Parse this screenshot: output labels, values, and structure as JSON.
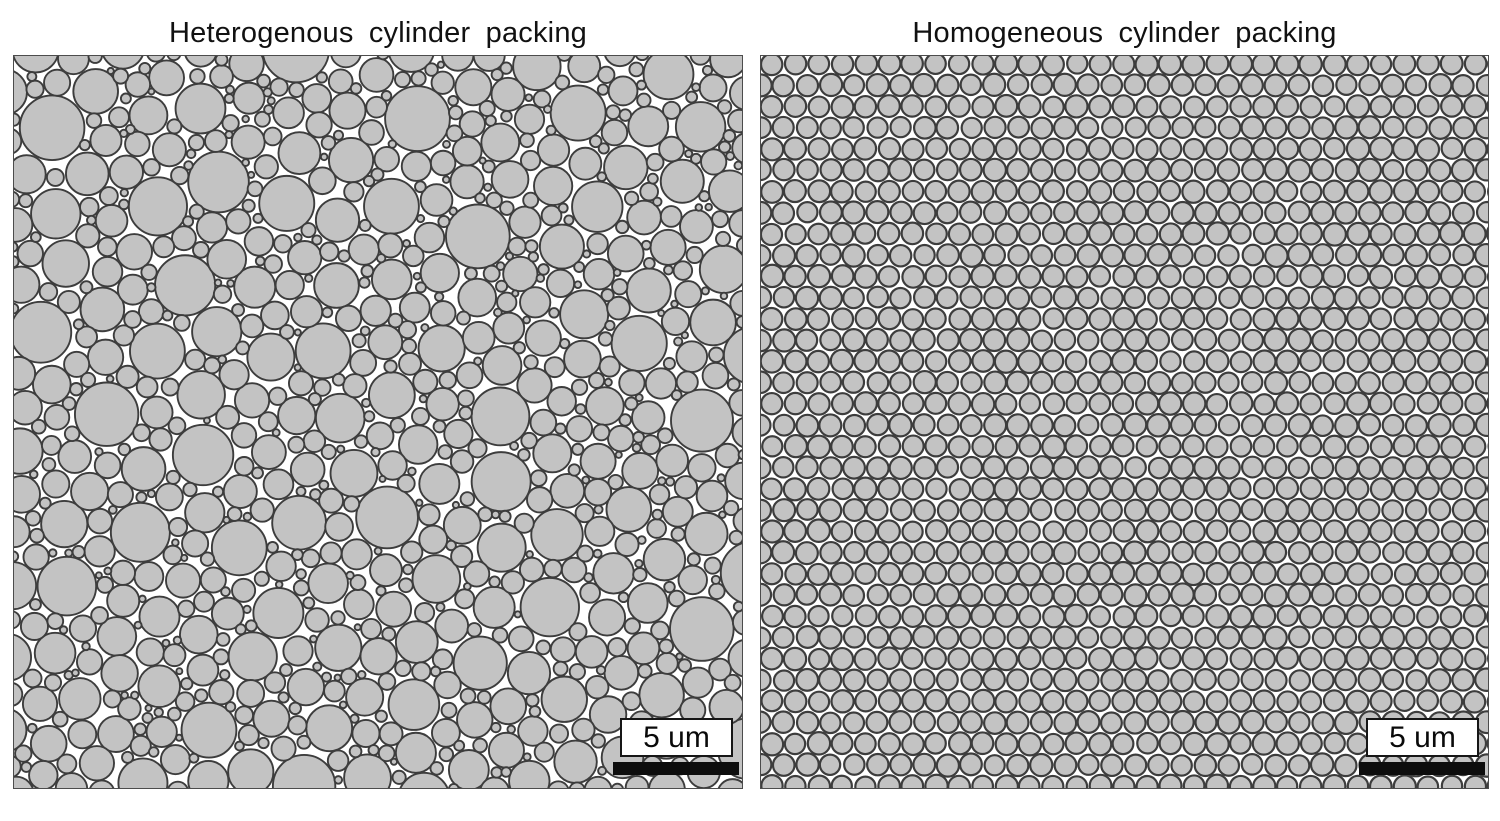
{
  "figure": {
    "background": "#ffffff",
    "title_color": "#111111",
    "panel_border_color": "#4c4c4c",
    "scalebar_bar_color": "#0d0d0d",
    "scalebar_box_border": "#161616",
    "scalebar_box_fill": "#ffffff"
  },
  "panels": [
    {
      "id": "heterogeneous",
      "title": "Heterogenous cylinder packing",
      "scalebar": {
        "label": "5 um"
      },
      "packing": {
        "type": "heterogeneous",
        "seed": 1337,
        "radius_classes": [
          [
            26,
            34,
            32
          ],
          [
            19,
            26,
            85
          ],
          [
            13,
            19,
            170
          ],
          [
            8.5,
            13,
            260
          ],
          [
            5,
            8.5,
            300
          ],
          [
            3,
            5,
            200
          ]
        ],
        "fill": "#c3c3c3",
        "stroke": "#3d3d3d",
        "stroke_width": 1.9
      }
    },
    {
      "id": "homogeneous",
      "title": "Homogeneous cylinder packing",
      "scalebar": {
        "label": "5 um"
      },
      "packing": {
        "type": "homogeneous",
        "seed": 4242,
        "pitch_x": 23.5,
        "pitch_y": 21.3,
        "radius_min": 10.1,
        "radius_max": 11.2,
        "jitter": 1.2,
        "fill": "#c3c3c3",
        "stroke": "#3d3d3d",
        "stroke_width": 2.2
      }
    }
  ]
}
